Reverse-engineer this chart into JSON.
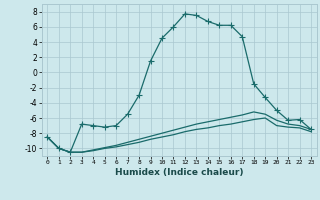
{
  "xlabel": "Humidex (Indice chaleur)",
  "background_color": "#cde8ec",
  "grid_color": "#aac8d0",
  "line_color": "#1a6b6b",
  "markersize": 2.5,
  "linewidth": 0.9,
  "ylim": [
    -11,
    9
  ],
  "xlim": [
    -0.5,
    23.5
  ],
  "yticks": [
    -10,
    -8,
    -6,
    -4,
    -2,
    0,
    2,
    4,
    6,
    8
  ],
  "xticks": [
    0,
    1,
    2,
    3,
    4,
    5,
    6,
    7,
    8,
    9,
    10,
    11,
    12,
    13,
    14,
    15,
    16,
    17,
    18,
    19,
    20,
    21,
    22,
    23
  ],
  "series": [
    {
      "x": [
        0,
        1,
        2,
        3,
        4,
        5,
        6,
        7,
        8,
        9,
        10,
        11,
        12,
        13,
        14,
        15,
        16,
        17,
        18,
        19,
        20,
        21,
        22,
        23
      ],
      "y": [
        -8.5,
        -10.0,
        -10.5,
        -6.8,
        -7.0,
        -7.2,
        -7.0,
        -5.5,
        -3.0,
        1.5,
        4.5,
        6.0,
        7.7,
        7.5,
        6.7,
        6.2,
        6.2,
        4.7,
        -1.5,
        -3.3,
        -5.0,
        -6.3,
        -6.2,
        -7.5
      ],
      "has_markers": true
    },
    {
      "x": [
        0,
        1,
        2,
        3,
        4,
        5,
        6,
        7,
        8,
        9,
        10,
        11,
        12,
        13,
        14,
        15,
        16,
        17,
        18,
        19,
        20,
        21,
        22,
        23
      ],
      "y": [
        -8.5,
        -10.0,
        -10.5,
        -10.5,
        -10.3,
        -10.0,
        -9.8,
        -9.5,
        -9.2,
        -8.8,
        -8.5,
        -8.2,
        -7.8,
        -7.5,
        -7.3,
        -7.0,
        -6.8,
        -6.5,
        -6.2,
        -6.0,
        -7.0,
        -7.2,
        -7.3,
        -7.8
      ],
      "has_markers": false
    },
    {
      "x": [
        0,
        1,
        2,
        3,
        4,
        5,
        6,
        7,
        8,
        9,
        10,
        11,
        12,
        13,
        14,
        15,
        16,
        17,
        18,
        19,
        20,
        21,
        22,
        23
      ],
      "y": [
        -8.5,
        -10.0,
        -10.5,
        -10.5,
        -10.2,
        -9.9,
        -9.6,
        -9.2,
        -8.8,
        -8.4,
        -8.0,
        -7.6,
        -7.2,
        -6.8,
        -6.5,
        -6.2,
        -5.9,
        -5.6,
        -5.2,
        -5.5,
        -6.3,
        -6.8,
        -7.0,
        -7.5
      ],
      "has_markers": false
    }
  ]
}
